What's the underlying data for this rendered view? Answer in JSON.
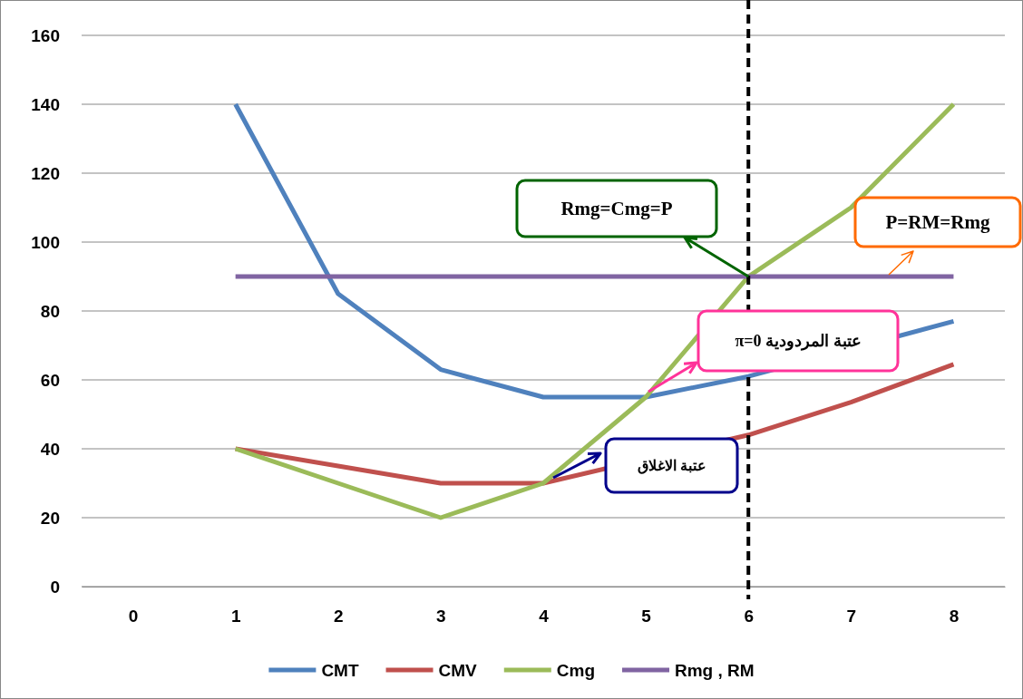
{
  "chart_data": {
    "type": "line",
    "categories": [
      "0",
      "1",
      "2",
      "3",
      "4",
      "5",
      "6",
      "7",
      "8"
    ],
    "series": [
      {
        "name": "CMT",
        "color": "#4f81bd",
        "values": [
          null,
          140,
          85,
          63,
          55,
          55,
          61,
          null,
          77
        ]
      },
      {
        "name": "CMV",
        "color": "#c0504d",
        "values": [
          null,
          40,
          35,
          30,
          30,
          null,
          44,
          53.5,
          64.5
        ]
      },
      {
        "name": "Cmg",
        "color": "#9bbb59",
        "values": [
          null,
          40,
          30,
          20,
          30,
          55,
          90,
          110,
          140
        ]
      },
      {
        "name": "Rmg , RM",
        "color": "#8064a2",
        "values": [
          null,
          90,
          90,
          90,
          90,
          90,
          90,
          90,
          90
        ]
      }
    ],
    "ylim": [
      0,
      160
    ],
    "yticks": [
      0,
      20,
      40,
      60,
      80,
      100,
      120,
      140,
      160
    ],
    "grid": "y",
    "legend": "bottom",
    "marker": "none",
    "line_style": "solid",
    "ref_lines": [
      {
        "axis": "x",
        "value": "6",
        "color": "#000000",
        "line_style": "dashed"
      }
    ],
    "annotations": [
      {
        "text": "Rmg=Cmg=P",
        "x": "6",
        "y": 90
      },
      "P=RM=Rmg",
      "عتبة المردودية π=0",
      "عتبة الاغلاق"
    ]
  }
}
